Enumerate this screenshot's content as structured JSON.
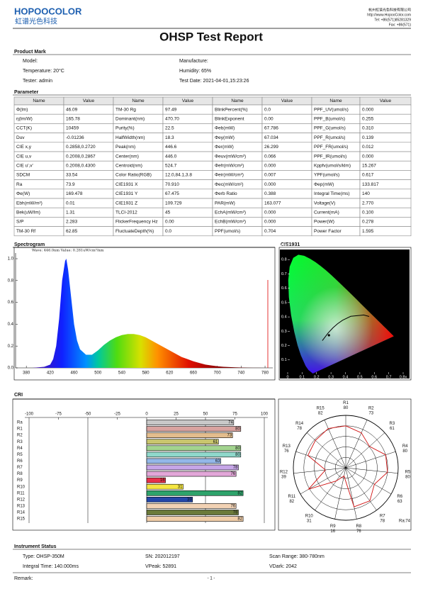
{
  "header": {
    "logo": "HOPOOCOLOR",
    "logo_cn": "虹谱光色科技",
    "company": "杭州虹谱光色科技有限公司",
    "web": "http://www.HopooColor.com",
    "tel": "Tel: +86(571)85281329",
    "fax": "Fax: +86(571)",
    "title": "OHSP Test Report"
  },
  "product": {
    "title": "Product Mark",
    "fields": [
      "Model:",
      "Manufacture:",
      "Temperature: 20°C",
      "Humidity: 65%",
      "Tester: admin",
      "Test Date: 2021-04-01,15:23:26"
    ]
  },
  "parameter": {
    "title": "Parameter",
    "header": [
      "Name",
      "Value",
      "Name",
      "Value",
      "Name",
      "Value",
      "Name",
      "Value"
    ],
    "rows": [
      [
        "Φ(lm)",
        "46.09",
        "TM-30 Rg",
        "97.49",
        "BlinkPercent(%)",
        "0.0",
        "PPF_UV(umol/s)",
        "0.000"
      ],
      [
        "η(lm/W)",
        "165.78",
        "Dominant(nm)",
        "470.70",
        "BlinkExponent",
        "0.00",
        "PPF_B(umol/s)",
        "0.255"
      ],
      [
        "CCT(K)",
        "10459",
        "Purity(%)",
        "22.5",
        "Φeb(mW)",
        "67.786",
        "PPF_G(umol/s)",
        "0.310"
      ],
      [
        "Duv",
        "-0.01236",
        "HalfWidth(nm)",
        "18.3",
        "Φey(mW)",
        "67.034",
        "PPF_R(umol/s)",
        "0.139"
      ],
      [
        "CIE x,y",
        "0.2858,0.2720",
        "Peak(nm)",
        "446.6",
        "Φer(mW)",
        "26.299",
        "PPF_FR(umol/s)",
        "0.012"
      ],
      [
        "CIE u,v",
        "0.2008,0.2867",
        "Center(nm)",
        "446.0",
        "Φeuv(mW/cm²)",
        "0.066",
        "PPF_IR(umol/s)",
        "0.000"
      ],
      [
        "CIE u',v'",
        "0.2008,0.4300",
        "Centroid(nm)",
        "524.7",
        "Φefr(mW/cm²)",
        "0.000",
        "Kppfv(umol/s/klm)",
        "15.267"
      ],
      [
        "SDCM",
        "33.54",
        "Color Ratio(RGB)",
        "12.0,84.1,3.8",
        "Φeir(mW/cm²)",
        "0.007",
        "YPF(umol/s)",
        "0.617"
      ],
      [
        "Ra",
        "73.9",
        "CIE1931 X",
        "70.910",
        "Φec(mW/cm²)",
        "0.000",
        "Φep(mW)",
        "133.817"
      ],
      [
        "Φe(W)",
        "169.478",
        "CIE1931 Y",
        "67.475",
        "Φerb Ratio",
        "0.388",
        "Integral Time(ms)",
        "140"
      ],
      [
        "Ebh(mW/m²)",
        "0.01",
        "CIE1931 Z",
        "109.729",
        "PAR(mW)",
        "163.077",
        "Voltage(V)",
        "2.770"
      ],
      [
        "Bek(uW/lm)",
        "1.31",
        "TLCI-2012",
        "45",
        "EchA(mW/cm²)",
        "0.000",
        "Current(mA)",
        "0.100"
      ],
      [
        "S/P",
        "2.283",
        "FlickerFrequency Hz",
        "0.00",
        "EchB(mW/cm²)",
        "0.000",
        "Power(W)",
        "0.278"
      ],
      [
        "TM-30 Rf",
        "62.85",
        "FluctuateDepth(%)",
        "0.0",
        "PPF(umol/s)",
        "0.704",
        "Power Factor",
        "1.595"
      ]
    ]
  },
  "chart_data": [
    {
      "type": "area",
      "title": "Spectrogram",
      "annotation": "Wave: 446.0nm Value: 0.281uW/cm²/nm",
      "x": [
        380,
        390,
        400,
        410,
        420,
        425,
        430,
        435,
        440,
        445,
        447,
        450,
        455,
        460,
        465,
        470,
        480,
        490,
        500,
        510,
        520,
        530,
        540,
        550,
        560,
        570,
        580,
        590,
        600,
        610,
        620,
        630,
        640,
        650,
        660,
        670,
        680,
        690,
        700,
        710,
        720,
        730,
        740,
        750,
        760,
        770,
        780
      ],
      "values": [
        0,
        0,
        0.005,
        0.01,
        0.03,
        0.08,
        0.2,
        0.45,
        0.8,
        0.98,
        1.0,
        0.9,
        0.65,
        0.4,
        0.25,
        0.17,
        0.12,
        0.12,
        0.16,
        0.21,
        0.25,
        0.28,
        0.3,
        0.31,
        0.31,
        0.3,
        0.28,
        0.25,
        0.22,
        0.19,
        0.16,
        0.13,
        0.1,
        0.08,
        0.06,
        0.045,
        0.03,
        0.022,
        0.015,
        0.01,
        0.007,
        0.005,
        0.003,
        0.002,
        0.001,
        0.001,
        0
      ],
      "xlim": [
        362,
        793
      ],
      "xticks": [
        380,
        420,
        460,
        500,
        540,
        580,
        620,
        660,
        700,
        740,
        780
      ],
      "ylim": [
        0,
        1.05
      ],
      "yticks": [
        {
          "value": 0,
          "label": "0.0"
        },
        0.2,
        0.4,
        0.6,
        0.8,
        {
          "value": 1,
          "label": "1.0"
        }
      ]
    },
    {
      "type": "scatter",
      "title": "CIE1931",
      "x": [
        0.2858
      ],
      "values": [
        0.272
      ],
      "color": "#000000",
      "xlim": [
        0,
        0.8
      ],
      "xticks": [
        0,
        0.1,
        0.2,
        0.3,
        0.4,
        0.5,
        0.6,
        0.7,
        {
          "value": 0.8,
          "label": "0.8x"
        }
      ],
      "ylim": [
        0,
        0.9
      ],
      "yticks": [
        0.1,
        0.2,
        0.3,
        0.4,
        0.5,
        0.6,
        0.7,
        0.8,
        0.9
      ]
    },
    {
      "type": "bar",
      "title": "CRI",
      "orientation": "horizontal",
      "categories": [
        "Ra",
        "R1",
        "R2",
        "R3",
        "R4",
        "R5",
        "R6",
        "R7",
        "R8",
        "R9",
        "R10",
        "R11",
        "R12",
        "R13",
        "R14",
        "R15"
      ],
      "values": [
        74,
        80,
        73,
        61,
        80,
        80,
        63,
        78,
        76,
        16,
        31,
        82,
        39,
        76,
        78,
        82
      ],
      "colors": [
        "#c8c8c8",
        "#d9a3a0",
        "#e3bd8d",
        "#c9c56e",
        "#a3d48f",
        "#8fd8cb",
        "#93b7e8",
        "#c6a6e8",
        "#e2a6d8",
        "#e8304a",
        "#f5e642",
        "#2ea36b",
        "#2446a8",
        "#f2d2b4",
        "#6b7a3a",
        "#f0cda8"
      ],
      "xlim": [
        -100,
        100
      ],
      "xticks": [
        -100,
        -75,
        -50,
        -25,
        0,
        25,
        50,
        75,
        100
      ]
    },
    {
      "type": "polar",
      "categories": [
        "R1",
        "R2",
        "R3",
        "R4",
        "R5",
        "R6",
        "R7",
        "R8",
        "R9",
        "R10",
        "R11",
        "R12",
        "R13",
        "R14",
        "R15"
      ],
      "values": [
        80,
        73,
        61,
        80,
        80,
        63,
        78,
        76,
        16,
        31,
        82,
        39,
        76,
        78,
        82
      ],
      "color": "#d01010",
      "rlim": [
        0,
        100
      ],
      "rticks": [
        20,
        40,
        60,
        80,
        100
      ],
      "annotation": "Ra:74"
    }
  ],
  "instrument": {
    "title": "Instrument Status",
    "fields": [
      "Type: OHSP-350M",
      "SN: 202012197",
      "Scan Range: 380-780nm",
      "Integral Time: 140.000ms",
      "VPeak: 52891",
      "VDark: 2042"
    ]
  },
  "footer": {
    "remark": "Remark:",
    "page": "- 1 -"
  }
}
